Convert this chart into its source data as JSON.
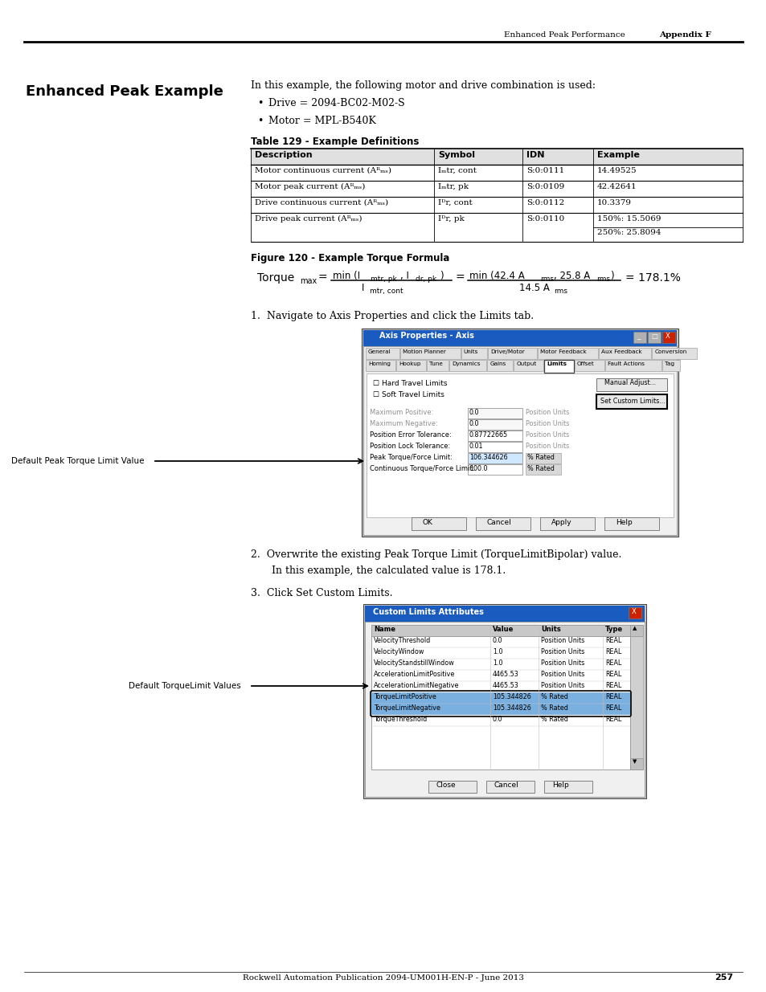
{
  "page_header_left": "Enhanced Peak Performance",
  "page_header_right": "Appendix F",
  "section_title": "Enhanced Peak Example",
  "intro_text": "In this example, the following motor and drive combination is used:",
  "bullet1": "Drive = 2094-BC02-M02-S",
  "bullet2": "Motor = MPL-B540K",
  "table_title": "Table 129 - Example Definitions",
  "table_headers": [
    "Description",
    "Symbol",
    "IDN",
    "Example"
  ],
  "figure_title": "Figure 120 - Example Torque Formula",
  "step1_text": "1.  Navigate to Axis Properties and click the Limits tab.",
  "step2_text": "2.  Overwrite the existing Peak Torque Limit (TorqueLimitBipolar) value.",
  "step2b_text": "In this example, the calculated value is 178.1.",
  "step3_text": "3.  Click Set Custom Limits.",
  "default_label1": "Default Peak Torque Limit Value",
  "default_label2": "Default TorqueLimit Values",
  "page_footer": "Rockwell Automation Publication 2094-UM001H-EN-P - June 2013",
  "page_number": "257",
  "bg_color": "#ffffff"
}
